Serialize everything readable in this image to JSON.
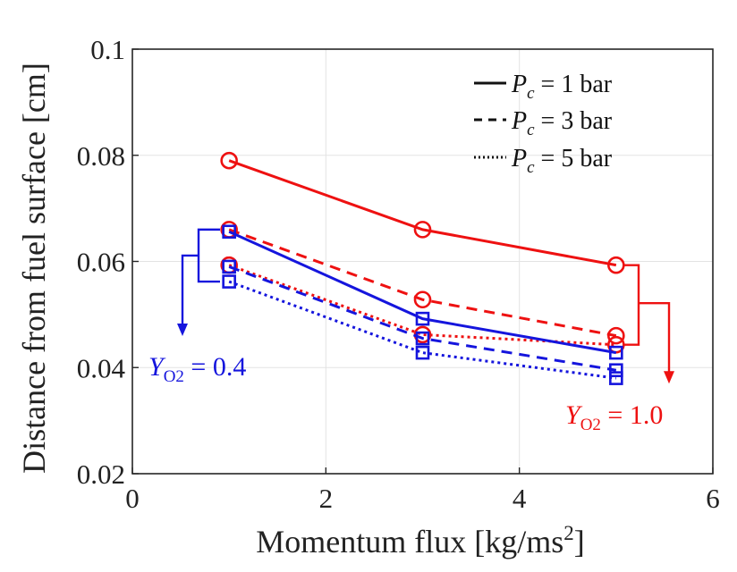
{
  "chart_data": {
    "type": "line",
    "title": "",
    "xlabel": "Momentum flux [kg/ms2]",
    "ylabel": "Distance from fuel surface [cm]",
    "xlim": [
      0,
      6
    ],
    "ylim": [
      0.02,
      0.1
    ],
    "xticks": [
      "0",
      "2",
      "4",
      "6"
    ],
    "yticks": [
      "0.02",
      "0.04",
      "0.06",
      "0.08",
      "0.1"
    ],
    "grid": true,
    "legend": {
      "placement": "top-right",
      "entries": [
        {
          "label": "P_c = 1 bar",
          "style": "solid"
        },
        {
          "label": "P_c = 3 bar",
          "style": "dashed"
        },
        {
          "label": "P_c = 5 bar",
          "style": "dotted"
        }
      ]
    },
    "x": [
      1,
      3,
      5
    ],
    "series": [
      {
        "name": "Y_O2 = 1.0, P_c = 1 bar",
        "color": "#ee1111",
        "marker": "circle",
        "style": "solid",
        "values": [
          0.079,
          0.066,
          0.0593
        ]
      },
      {
        "name": "Y_O2 = 1.0, P_c = 3 bar",
        "color": "#ee1111",
        "marker": "circle",
        "style": "dashed",
        "values": [
          0.066,
          0.0528,
          0.046
        ]
      },
      {
        "name": "Y_O2 = 1.0, P_c = 5 bar",
        "color": "#ee1111",
        "marker": "circle",
        "style": "dotted",
        "values": [
          0.0593,
          0.0462,
          0.0443
        ]
      },
      {
        "name": "Y_O2 = 0.4, P_c = 1 bar",
        "color": "#1515dd",
        "marker": "square",
        "style": "solid",
        "values": [
          0.0656,
          0.0492,
          0.0428
        ]
      },
      {
        "name": "Y_O2 = 0.4, P_c = 3 bar",
        "color": "#1515dd",
        "marker": "square",
        "style": "dashed",
        "values": [
          0.059,
          0.0455,
          0.0395
        ]
      },
      {
        "name": "Y_O2 = 0.4, P_c = 5 bar",
        "color": "#1515dd",
        "marker": "square",
        "style": "dotted",
        "values": [
          0.0562,
          0.0428,
          0.038
        ]
      }
    ],
    "annotations": [
      {
        "text": "Y_O2 = 0.4",
        "color": "#1515dd"
      },
      {
        "text": "Y_O2 = 1.0",
        "color": "#ee1111"
      }
    ]
  },
  "legend_labels": {
    "p1": {
      "var": "P",
      "sub": "c",
      "rest": " = 1 bar"
    },
    "p3": {
      "var": "P",
      "sub": "c",
      "rest": " = 3 bar"
    },
    "p5": {
      "var": "P",
      "sub": "c",
      "rest": " = 5 bar"
    }
  },
  "annotation_labels": {
    "blue": {
      "var": "Y",
      "sub": "O2",
      "rest": " = 0.4"
    },
    "red": {
      "var": "Y",
      "sub": "O2",
      "rest": " = 1.0"
    }
  },
  "axis_labels": {
    "x_main": "Momentum flux [kg/ms",
    "x_sup": "2",
    "x_close": "]",
    "y": "Distance from fuel surface [cm]"
  },
  "colors": {
    "red": "#ee1111",
    "blue": "#1515dd",
    "grid": "#e3e3e3"
  }
}
